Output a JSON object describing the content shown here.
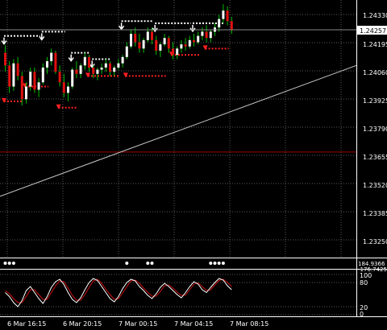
{
  "colors": {
    "background": "#000000",
    "grid": "#5a5a5a",
    "axis": "#ffffff",
    "bull_candle": "#ffffff",
    "bear_candle": "#e01010",
    "wick": "#00c000",
    "support_marker": "#ff2020",
    "resistance_marker": "#ffffff",
    "trendline": "#c8c8c8",
    "horizontal_level": "#a00000",
    "oscillator_main": "#ffffff",
    "oscillator_signal": "#d01010",
    "current_price_tag_bg": "#ffffff",
    "current_price_tag_text": "#000000"
  },
  "price_axis": {
    "ticks": [
      "1.24330",
      "1.24195",
      "1.24060",
      "1.23925",
      "1.23790",
      "1.23655",
      "1.23520",
      "1.23385",
      "1.23250"
    ],
    "current_price": "1.24257"
  },
  "time_axis": {
    "labels": [
      "6 Mar 16:15",
      "6 Mar 20:15",
      "7 Mar 00:15",
      "7 Mar 04:15",
      "7 Mar 08:15"
    ]
  },
  "signal_panel": {
    "scale_labels": [
      "184.9366",
      "-176.7425"
    ],
    "markers_icon": "dot-icon"
  },
  "oscillator_panel": {
    "scale_labels": [
      "100",
      "80",
      "20",
      "0"
    ]
  },
  "chart_data": {
    "type": "candlestick",
    "title": "",
    "y_range": [
      1.2318,
      1.244
    ],
    "x_labels": [
      "6 Mar 16:15",
      "6 Mar 20:15",
      "7 Mar 00:15",
      "7 Mar 04:15",
      "7 Mar 08:15"
    ],
    "candles": [
      [
        1.2415,
        1.24185,
        1.2406,
        1.2409
      ],
      [
        1.2409,
        1.2411,
        1.2396,
        1.2399
      ],
      [
        1.2399,
        1.2412,
        1.2397,
        1.241
      ],
      [
        1.241,
        1.2413,
        1.2402,
        1.2404
      ],
      [
        1.2404,
        1.2406,
        1.239,
        1.2393
      ],
      [
        1.2393,
        1.2401,
        1.2391,
        1.2399
      ],
      [
        1.2399,
        1.2408,
        1.2397,
        1.2406
      ],
      [
        1.2406,
        1.2408,
        1.2396,
        1.23975
      ],
      [
        1.23975,
        1.2403,
        1.2394,
        1.2401
      ],
      [
        1.2401,
        1.241,
        1.24,
        1.2408
      ],
      [
        1.2408,
        1.2413,
        1.2405,
        1.2411
      ],
      [
        1.2411,
        1.2417,
        1.2409,
        1.2415
      ],
      [
        1.2415,
        1.2416,
        1.2405,
        1.2406
      ],
      [
        1.2406,
        1.2409,
        1.2399,
        1.2401
      ],
      [
        1.2401,
        1.2405,
        1.2394,
        1.2396
      ],
      [
        1.2396,
        1.2401,
        1.2392,
        1.2399
      ],
      [
        1.2399,
        1.2408,
        1.2398,
        1.2407
      ],
      [
        1.2407,
        1.2411,
        1.2403,
        1.2405
      ],
      [
        1.2405,
        1.241,
        1.2403,
        1.2409
      ],
      [
        1.2409,
        1.2415,
        1.2407,
        1.2413
      ],
      [
        1.2413,
        1.2414,
        1.2406,
        1.2408
      ],
      [
        1.2408,
        1.2409,
        1.2403,
        1.2405
      ],
      [
        1.2405,
        1.2408,
        1.2402,
        1.2407
      ],
      [
        1.2407,
        1.241,
        1.2405,
        1.2408
      ],
      [
        1.2408,
        1.2412,
        1.2406,
        1.241
      ],
      [
        1.241,
        1.2411,
        1.2404,
        1.2406
      ],
      [
        1.2406,
        1.2409,
        1.2404,
        1.2408
      ],
      [
        1.2408,
        1.2412,
        1.2407,
        1.241
      ],
      [
        1.241,
        1.2414,
        1.2408,
        1.2413
      ],
      [
        1.2413,
        1.242,
        1.2412,
        1.2418
      ],
      [
        1.2418,
        1.2426,
        1.2417,
        1.2424
      ],
      [
        1.2424,
        1.2427,
        1.2418,
        1.242
      ],
      [
        1.242,
        1.2424,
        1.2415,
        1.2417
      ],
      [
        1.2417,
        1.2422,
        1.2415,
        1.2421
      ],
      [
        1.2421,
        1.2427,
        1.242,
        1.2425
      ],
      [
        1.2425,
        1.2427,
        1.2419,
        1.2421
      ],
      [
        1.2421,
        1.2423,
        1.2414,
        1.2416
      ],
      [
        1.2416,
        1.242,
        1.2413,
        1.2419
      ],
      [
        1.2419,
        1.2424,
        1.2418,
        1.2422
      ],
      [
        1.2422,
        1.2423,
        1.2415,
        1.2417
      ],
      [
        1.2417,
        1.242,
        1.2412,
        1.2414
      ],
      [
        1.2414,
        1.2418,
        1.2412,
        1.2417
      ],
      [
        1.2417,
        1.2421,
        1.2415,
        1.2419
      ],
      [
        1.2419,
        1.2422,
        1.2416,
        1.2418
      ],
      [
        1.2418,
        1.2423,
        1.2417,
        1.2421
      ],
      [
        1.2421,
        1.2424,
        1.2418,
        1.242
      ],
      [
        1.242,
        1.2425,
        1.2419,
        1.2423
      ],
      [
        1.2423,
        1.2427,
        1.2421,
        1.2425
      ],
      [
        1.2425,
        1.2428,
        1.242,
        1.2422
      ],
      [
        1.2422,
        1.2426,
        1.242,
        1.2425
      ],
      [
        1.2425,
        1.2429,
        1.2423,
        1.2427
      ],
      [
        1.2427,
        1.2433,
        1.2425,
        1.2431
      ],
      [
        1.2431,
        1.2438,
        1.2429,
        1.2435
      ],
      [
        1.2435,
        1.2437,
        1.2428,
        1.243
      ],
      [
        1.243,
        1.2432,
        1.2424,
        1.24257
      ]
    ],
    "trendline": [
      [
        1.2347,
        1.2409
      ]
    ],
    "horizontal_level": 1.2368,
    "support_levels": [
      {
        "from": 0,
        "to": 4,
        "price": 1.2392
      },
      {
        "from": 5,
        "to": 10,
        "price": 1.2399
      },
      {
        "from": 13,
        "to": 17,
        "price": 1.2389
      },
      {
        "from": 20,
        "to": 27,
        "price": 1.2404
      },
      {
        "from": 29,
        "to": 38,
        "price": 1.2404
      },
      {
        "from": 40,
        "to": 46,
        "price": 1.2414
      },
      {
        "from": 48,
        "to": 53,
        "price": 1.2417
      }
    ],
    "resistance_levels": [
      {
        "from": 0,
        "to": 8,
        "price": 1.2423
      },
      {
        "from": 9,
        "to": 14,
        "price": 1.2425
      },
      {
        "from": 16,
        "to": 20,
        "price": 1.2415
      },
      {
        "from": 21,
        "to": 25,
        "price": 1.2412
      },
      {
        "from": 28,
        "to": 35,
        "price": 1.243
      },
      {
        "from": 36,
        "to": 44,
        "price": 1.2429
      },
      {
        "from": 45,
        "to": 52,
        "price": 1.2429
      }
    ],
    "signal_dots": [
      0,
      1,
      2,
      29,
      34,
      35,
      49,
      50,
      51,
      52
    ],
    "oscillator_main": [
      55,
      45,
      30,
      20,
      35,
      60,
      70,
      55,
      40,
      28,
      45,
      68,
      82,
      88,
      75,
      55,
      38,
      30,
      42,
      62,
      80,
      90,
      85,
      70,
      55,
      40,
      32,
      45,
      65,
      80,
      88,
      84,
      70,
      60,
      48,
      40,
      52,
      68,
      78,
      70,
      60,
      50,
      42,
      55,
      70,
      82,
      76,
      62,
      55,
      68,
      80,
      90,
      86,
      72,
      62
    ],
    "oscillator_signal": [
      60,
      52,
      40,
      30,
      30,
      45,
      62,
      62,
      50,
      38,
      38,
      55,
      72,
      84,
      82,
      66,
      48,
      36,
      36,
      50,
      68,
      84,
      88,
      78,
      63,
      50,
      38,
      40,
      54,
      70,
      84,
      86,
      78,
      66,
      56,
      46,
      46,
      58,
      72,
      74,
      66,
      56,
      48,
      49,
      62,
      76,
      79,
      70,
      60,
      62,
      74,
      85,
      88,
      80,
      70
    ]
  }
}
